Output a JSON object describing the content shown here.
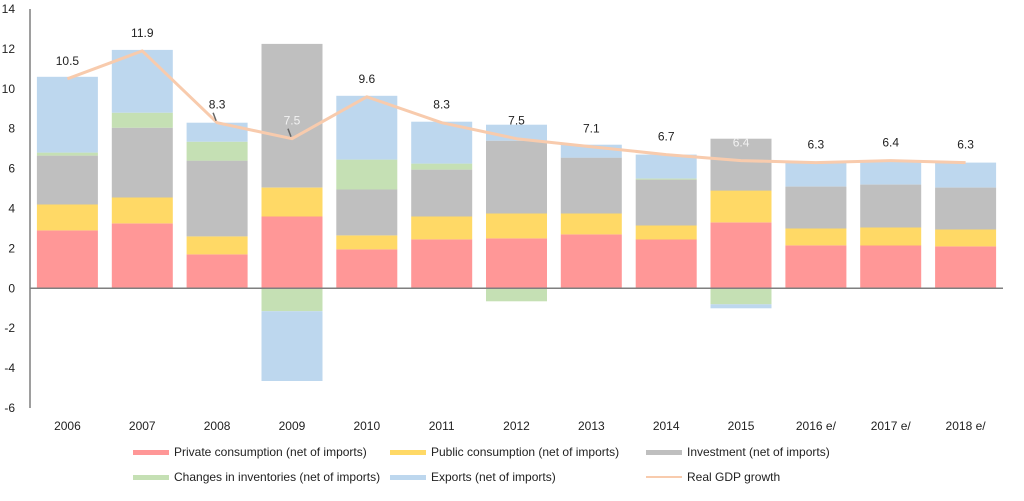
{
  "chart_data": {
    "type": "bar",
    "subtype": "stacked-bar-with-line",
    "title": "",
    "xlabel": "",
    "ylabel": "",
    "ylim": [
      -6,
      14
    ],
    "yticks": [
      -6,
      -4,
      -2,
      0,
      2,
      4,
      6,
      8,
      10,
      12,
      14
    ],
    "grid": false,
    "legend_position": "bottom",
    "categories": [
      "2006",
      "2007",
      "2008",
      "2009",
      "2010",
      "2011",
      "2012",
      "2013",
      "2014",
      "2015",
      "2016 e/",
      "2017 e/",
      "2018 e/"
    ],
    "series": [
      {
        "name": "Private consumption (net of imports)",
        "type": "bar",
        "color": "#ff9797",
        "values": [
          2.9,
          3.25,
          1.7,
          3.6,
          1.95,
          2.45,
          2.5,
          2.7,
          2.45,
          3.3,
          2.15,
          2.15,
          2.1
        ]
      },
      {
        "name": "Public consumption (net of imports)",
        "type": "bar",
        "color": "#ffd966",
        "values": [
          1.3,
          1.3,
          0.9,
          1.45,
          0.7,
          1.15,
          1.25,
          1.05,
          0.7,
          1.6,
          0.85,
          0.9,
          0.85
        ]
      },
      {
        "name": "Investment (net of imports)",
        "type": "bar",
        "color": "#bfbfbf",
        "values": [
          2.45,
          3.5,
          3.8,
          7.2,
          2.3,
          2.35,
          3.65,
          2.8,
          2.3,
          2.6,
          2.1,
          2.15,
          2.1
        ]
      },
      {
        "name": "Changes in inventories (net of imports)",
        "type": "bar",
        "color": "#c5e0b4",
        "values": [
          0.15,
          0.75,
          0.95,
          -1.15,
          1.5,
          0.3,
          -0.65,
          0.0,
          0.05,
          -0.8,
          0.0,
          0.0,
          0.0
        ]
      },
      {
        "name": "Exports (net of imports)",
        "type": "bar",
        "color": "#bdd7ee",
        "values": [
          3.8,
          3.15,
          0.95,
          -3.5,
          3.2,
          2.1,
          0.8,
          0.65,
          1.2,
          -0.2,
          1.2,
          1.15,
          1.25
        ]
      },
      {
        "name": "Real GDP growth",
        "type": "line",
        "color": "#f8cbad",
        "values": [
          10.5,
          11.9,
          8.3,
          7.5,
          9.6,
          8.3,
          7.5,
          7.1,
          6.7,
          6.4,
          6.3,
          6.4,
          6.3
        ]
      }
    ],
    "data_labels": [
      "10.5",
      "11.9",
      "8.3",
      "7.5",
      "9.6",
      "8.3",
      "7.5",
      "7.1",
      "6.7",
      "6.4",
      "6.3",
      "6.4",
      "6.3"
    ],
    "data_label_light": [
      false,
      false,
      false,
      true,
      false,
      false,
      false,
      false,
      false,
      true,
      false,
      false,
      false
    ]
  },
  "colors": {
    "axis": "#7f7f7f",
    "label_dark": "#222222",
    "label_light": "#f2f2f2"
  }
}
